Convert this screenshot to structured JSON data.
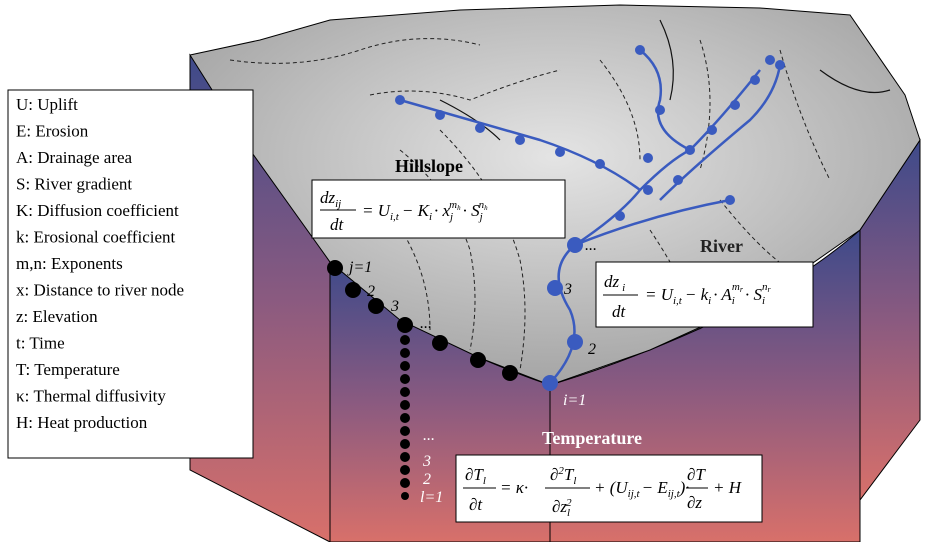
{
  "legend": {
    "items": [
      "U: Uplift",
      "E: Erosion",
      "A: Drainage area",
      "S: River gradient",
      "K: Diffusion coefficient",
      "k: Erosional coefficient",
      "m,n: Exponents",
      "x: Distance to river node",
      "z: Elevation",
      "t: Time",
      "T: Temperature",
      "κ: Thermal diffusivity",
      "H: Heat production"
    ]
  },
  "labels": {
    "hillslope": "Hillslope",
    "river": "River",
    "temperature": "Temperature"
  },
  "hillslope_nodes": [
    "j=1",
    "2",
    "3",
    "..."
  ],
  "river_nodes": [
    "...",
    "3",
    "2",
    "i=1"
  ],
  "temperature_nodes": [
    "...",
    "3",
    "2",
    "l=1"
  ],
  "equations": {
    "hillslope": [
      "dz",
      "ij",
      "dt",
      "= U",
      "i,t",
      "− K",
      "i",
      "· x",
      "j",
      "m",
      "h",
      "· S",
      "j",
      "n",
      "h"
    ],
    "river": [
      "dz",
      "i",
      "dt",
      "= U",
      "i,t",
      "− k",
      "i",
      "· A",
      "i",
      "m",
      "r",
      "· S",
      "i",
      "n",
      "r"
    ],
    "temperature": [
      "∂T",
      "l",
      "∂t",
      "= κ·",
      "∂",
      "2",
      "T",
      "l",
      "∂z",
      "l",
      "2",
      "+ (U",
      "ij,t",
      "− E",
      "ij,t",
      ")·",
      "∂T",
      "∂z",
      "+ H"
    ]
  }
}
